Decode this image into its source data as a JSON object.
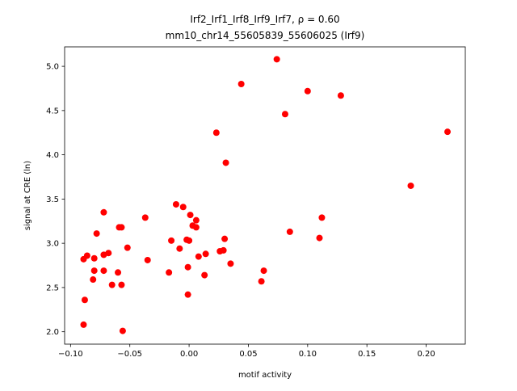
{
  "chart_data": {
    "type": "scatter",
    "title": "Irf2_Irf1_Irf8_Irf9_Irf7, ρ = 0.60",
    "subtitle": "mm10_chr14_55605839_55606025 (Irf9)",
    "x_label": "motif activity",
    "y_label": "signal at CRE (ln)",
    "color": "#ff0000",
    "xlim": [
      -0.105,
      0.233
    ],
    "ylim": [
      1.86,
      5.22
    ],
    "xticks": [
      {
        "value": -0.1,
        "label": "−0.10"
      },
      {
        "value": -0.05,
        "label": "−0.05"
      },
      {
        "value": 0,
        "label": "0.00"
      },
      {
        "value": 0.05,
        "label": "0.05"
      },
      {
        "value": 0.1,
        "label": "0.10"
      },
      {
        "value": 0.15,
        "label": "0.15"
      },
      {
        "value": 0.2,
        "label": "0.20"
      }
    ],
    "yticks": [
      {
        "value": 2,
        "label": "2.0"
      },
      {
        "value": 2.5,
        "label": "2.5"
      },
      {
        "value": 3,
        "label": "3.0"
      },
      {
        "value": 3.5,
        "label": "3.5"
      },
      {
        "value": 4,
        "label": "4.0"
      },
      {
        "value": 4.5,
        "label": "4.5"
      },
      {
        "value": 5,
        "label": "5.0"
      }
    ],
    "x": [
      0.074,
      0.044,
      0.1,
      0.128,
      0.081,
      0.023,
      0.218,
      0.031,
      0.187,
      -0.072,
      -0.011,
      -0.005,
      0.001,
      0.006,
      -0.037,
      -0.059,
      -0.057,
      -0.078,
      0.085,
      0.112,
      0.11,
      0.003,
      0.006,
      -0.002,
      0.0,
      -0.015,
      0.03,
      -0.052,
      -0.008,
      0.029,
      0.026,
      -0.068,
      0.014,
      -0.072,
      0.008,
      -0.086,
      -0.089,
      -0.08,
      -0.035,
      0.035,
      -0.001,
      -0.08,
      -0.072,
      0.063,
      -0.06,
      -0.017,
      0.013,
      -0.081,
      0.061,
      -0.065,
      -0.057,
      -0.001,
      -0.088,
      -0.089,
      -0.056
    ],
    "y": [
      5.08,
      4.8,
      4.72,
      4.67,
      4.46,
      4.25,
      4.26,
      3.91,
      3.65,
      3.35,
      3.44,
      3.41,
      3.32,
      3.26,
      3.29,
      3.18,
      3.18,
      3.11,
      3.13,
      3.29,
      3.06,
      3.2,
      3.18,
      3.04,
      3.03,
      3.03,
      3.05,
      2.95,
      2.94,
      2.92,
      2.91,
      2.89,
      2.88,
      2.87,
      2.85,
      2.86,
      2.82,
      2.83,
      2.81,
      2.77,
      2.73,
      2.69,
      2.69,
      2.69,
      2.67,
      2.67,
      2.64,
      2.59,
      2.57,
      2.53,
      2.53,
      2.42,
      2.36,
      2.08,
      2.01
    ]
  }
}
